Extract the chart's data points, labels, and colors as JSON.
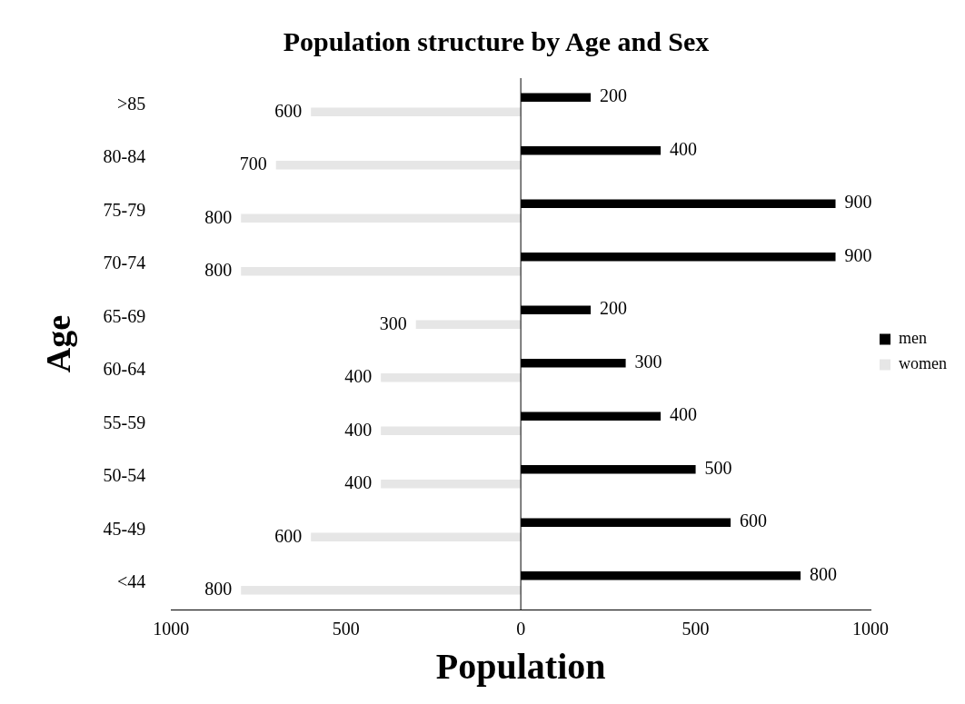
{
  "chart_data": {
    "type": "bar",
    "orientation": "horizontal",
    "title": "Population structure by Age and Sex",
    "xlabel": "Population",
    "ylabel": "Age",
    "categories": [
      ">85",
      "80-84",
      "75-79",
      "70-74",
      "65-69",
      "60-64",
      "55-59",
      "50-54",
      "45-49",
      "<44"
    ],
    "series": [
      {
        "name": "men",
        "color": "#000000",
        "values": [
          200,
          400,
          900,
          900,
          200,
          300,
          400,
          500,
          600,
          800
        ],
        "value_labels": [
          "200",
          "400",
          "900",
          "900",
          "200",
          "300",
          "400",
          "500",
          "600",
          "800"
        ]
      },
      {
        "name": "women",
        "color": "#e6e6e6",
        "values": [
          600,
          700,
          800,
          800,
          300,
          400,
          400,
          400,
          600,
          800
        ],
        "base": [
          -600,
          -700,
          -800,
          -800,
          -300,
          -400,
          -400,
          -400,
          -600,
          -800
        ],
        "value_labels": [
          "600",
          "700",
          "800",
          "800",
          "300",
          "400",
          "400",
          "400",
          "600",
          "800"
        ]
      }
    ],
    "xlim": [
      -1000,
      1000
    ],
    "xticks": [
      {
        "value": -1000,
        "label": "1000"
      },
      {
        "value": -500,
        "label": "500"
      },
      0,
      500,
      1000
    ],
    "ref_lines": [
      {
        "axis": "x",
        "value": 0,
        "color": "#000000"
      }
    ],
    "grid": false,
    "legend": "right"
  }
}
